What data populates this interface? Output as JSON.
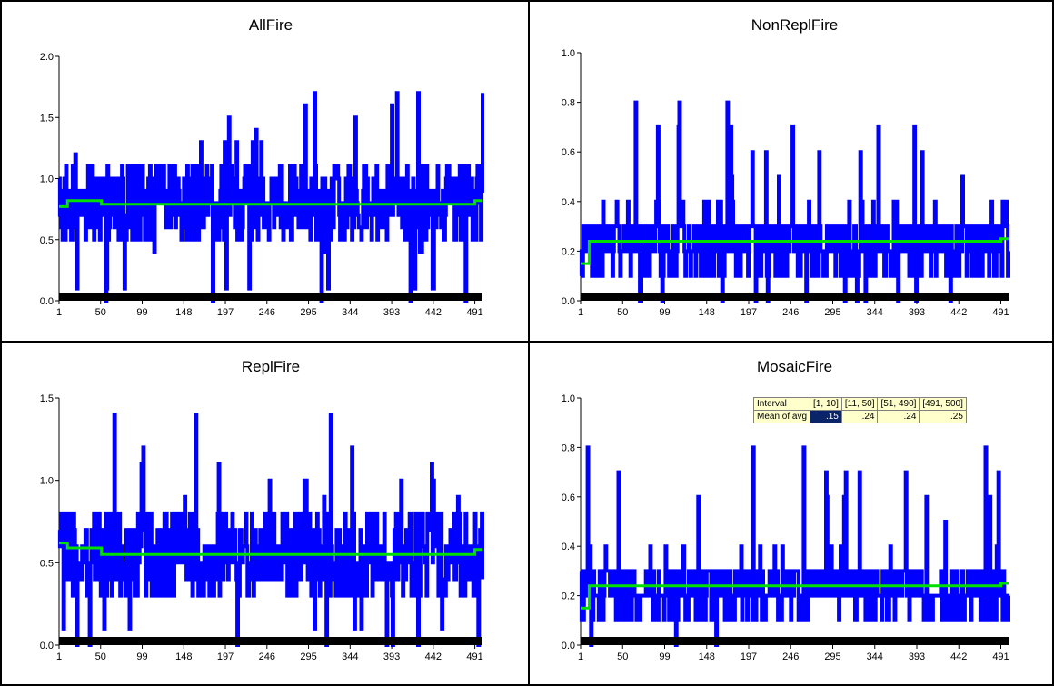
{
  "window": {
    "title": ""
  },
  "chart_data": [
    {
      "type": "line",
      "title": "AllFire",
      "ylim": [
        0,
        2.0
      ],
      "yticks": [
        "0.0",
        "0.5",
        "1.0",
        "1.5",
        "2.0"
      ],
      "xticks": [
        "1",
        "50",
        "99",
        "148",
        "197",
        "246",
        "295",
        "344",
        "393",
        "442",
        "491"
      ],
      "xrange": [
        1,
        500
      ],
      "series": [
        {
          "values_summary": "individual run values fluctuate between about 0.0 and 1.7, mostly 0.4-1.2",
          "color": "#0000ff"
        },
        {
          "steps": [
            [
              1,
              10,
              0.77
            ],
            [
              11,
              50,
              0.82
            ],
            [
              51,
              490,
              0.79
            ],
            [
              491,
              500,
              0.82
            ]
          ],
          "color": "#00e000"
        }
      ]
    },
    {
      "type": "line",
      "title": "NonReplFire",
      "ylim": [
        0,
        1.0
      ],
      "yticks": [
        "0.0",
        "0.2",
        "0.4",
        "0.6",
        "0.8",
        "1.0"
      ],
      "xticks": [
        "1",
        "50",
        "99",
        "148",
        "197",
        "246",
        "295",
        "344",
        "393",
        "442",
        "491"
      ],
      "xrange": [
        1,
        500
      ],
      "series": [
        {
          "values_summary": "individual run values between 0.0 and 0.8, mostly 0.1-0.4",
          "color": "#0000ff"
        },
        {
          "steps": [
            [
              1,
              10,
              0.15
            ],
            [
              11,
              50,
              0.24
            ],
            [
              51,
              490,
              0.24
            ],
            [
              491,
              500,
              0.25
            ]
          ],
          "color": "#00e000"
        }
      ]
    },
    {
      "type": "line",
      "title": "ReplFire",
      "ylim": [
        0,
        1.5
      ],
      "yticks": [
        "0.0",
        "0.5",
        "1.0",
        "1.5"
      ],
      "xticks": [
        "1",
        "50",
        "99",
        "148",
        "197",
        "246",
        "295",
        "344",
        "393",
        "442",
        "491"
      ],
      "xrange": [
        1,
        500
      ],
      "series": [
        {
          "values_summary": "individual run values between 0.0 and 1.4, mostly 0.3-0.8",
          "color": "#0000ff"
        },
        {
          "steps": [
            [
              1,
              10,
              0.62
            ],
            [
              11,
              50,
              0.59
            ],
            [
              51,
              490,
              0.55
            ],
            [
              491,
              500,
              0.58
            ]
          ],
          "color": "#00e000"
        }
      ]
    },
    {
      "type": "line",
      "title": "MosaicFire",
      "ylim": [
        0,
        1.0
      ],
      "yticks": [
        "0.0",
        "0.2",
        "0.4",
        "0.6",
        "0.8",
        "1.0"
      ],
      "xticks": [
        "1",
        "50",
        "99",
        "148",
        "197",
        "246",
        "295",
        "344",
        "393",
        "442",
        "491"
      ],
      "xrange": [
        1,
        500
      ],
      "series": [
        {
          "values_summary": "individual run values between 0.0 and 0.8, mostly 0.1-0.4",
          "color": "#0000ff"
        },
        {
          "steps": [
            [
              1,
              10,
              0.15
            ],
            [
              11,
              50,
              0.24
            ],
            [
              51,
              490,
              0.24
            ],
            [
              491,
              500,
              0.25
            ]
          ],
          "color": "#00e000"
        }
      ],
      "table": {
        "row_labels": [
          "Interval",
          "Mean of avg"
        ],
        "columns": [
          "[1, 10]",
          "[11, 50]",
          "[51, 490]",
          "[491, 500]"
        ],
        "values": [
          ".15",
          ".24",
          ".24",
          ".25"
        ]
      }
    }
  ],
  "colors": {
    "runs": "#0000ff",
    "average": "#00e000",
    "axis_bar": "#000000"
  }
}
